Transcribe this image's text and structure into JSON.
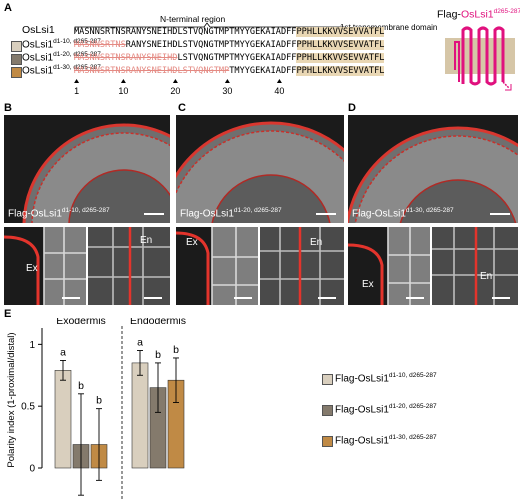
{
  "panelA": {
    "letter": "A",
    "wildtype_label": "OsLsi1",
    "nterm_region_label": "N-terminal region",
    "tm_domain_label": "1st transmembrane domain",
    "construct_title_prefix": "Flag-",
    "construct_title_main": "OsLsi1",
    "construct_title_sup": "d265-287",
    "variants": [
      {
        "base": "OsLsi1",
        "sup": "d1-10, d265-287",
        "color": "#d9cfbe"
      },
      {
        "base": "OsLsi1",
        "sup": "d1-20, d265-287",
        "color": "#847a6c"
      },
      {
        "base": "OsLsi1",
        "sup": "d1-30, d265-287",
        "color": "#c08a45"
      }
    ],
    "sequence_wt_nterm": "MASNNSRTNSRANYSNEIHDLSTVQNGTMPTMYYGEKAIADFF",
    "sequence_tm": "PPHLLKKVVSEVVATFL",
    "deletions": [
      10,
      20,
      30
    ],
    "position_ticks": [
      "1",
      "10",
      "20",
      "30",
      "40"
    ]
  },
  "panelB": {
    "letter": "B",
    "caption_base": "Flag-OsLsi1",
    "caption_sup": "d1-10, d265-287",
    "zoom_labels": [
      "Ex",
      "En"
    ]
  },
  "panelC": {
    "letter": "C",
    "caption_base": "Flag-OsLsi1",
    "caption_sup": "d1-20, d265-287",
    "zoom_labels": [
      "Ex",
      "En"
    ]
  },
  "panelD": {
    "letter": "D",
    "caption_base": "Flag-OsLsi1",
    "caption_sup": "d1-30, d265-287",
    "zoom_labels": [
      "Ex",
      "En"
    ]
  },
  "panelE": {
    "letter": "E"
  },
  "chart_data": {
    "type": "bar",
    "groups": [
      "Exodermis",
      "Endodermis"
    ],
    "ylabel": "Polarity index (1-proximal/distal)",
    "ylim": [
      0,
      1.1
    ],
    "yticks": [
      0,
      0.5,
      1
    ],
    "series": [
      {
        "name": "Flag-OsLsi1",
        "sup": "d1-10, d265-287",
        "color": "#d9cfbe",
        "values": [
          0.79,
          0.85
        ],
        "err": [
          0.08,
          0.1
        ],
        "letters": [
          "a",
          "a"
        ]
      },
      {
        "name": "Flag-OsLsi1",
        "sup": "d1-20, d265-287",
        "color": "#847a6c",
        "values": [
          0.19,
          0.65
        ],
        "err": [
          0.41,
          0.2
        ],
        "letters": [
          "b",
          "b"
        ]
      },
      {
        "name": "Flag-OsLsi1",
        "sup": "d1-30, d265-287",
        "color": "#c08a45",
        "values": [
          0.19,
          0.71
        ],
        "err": [
          0.29,
          0.18
        ],
        "letters": [
          "b",
          "b"
        ]
      }
    ]
  }
}
